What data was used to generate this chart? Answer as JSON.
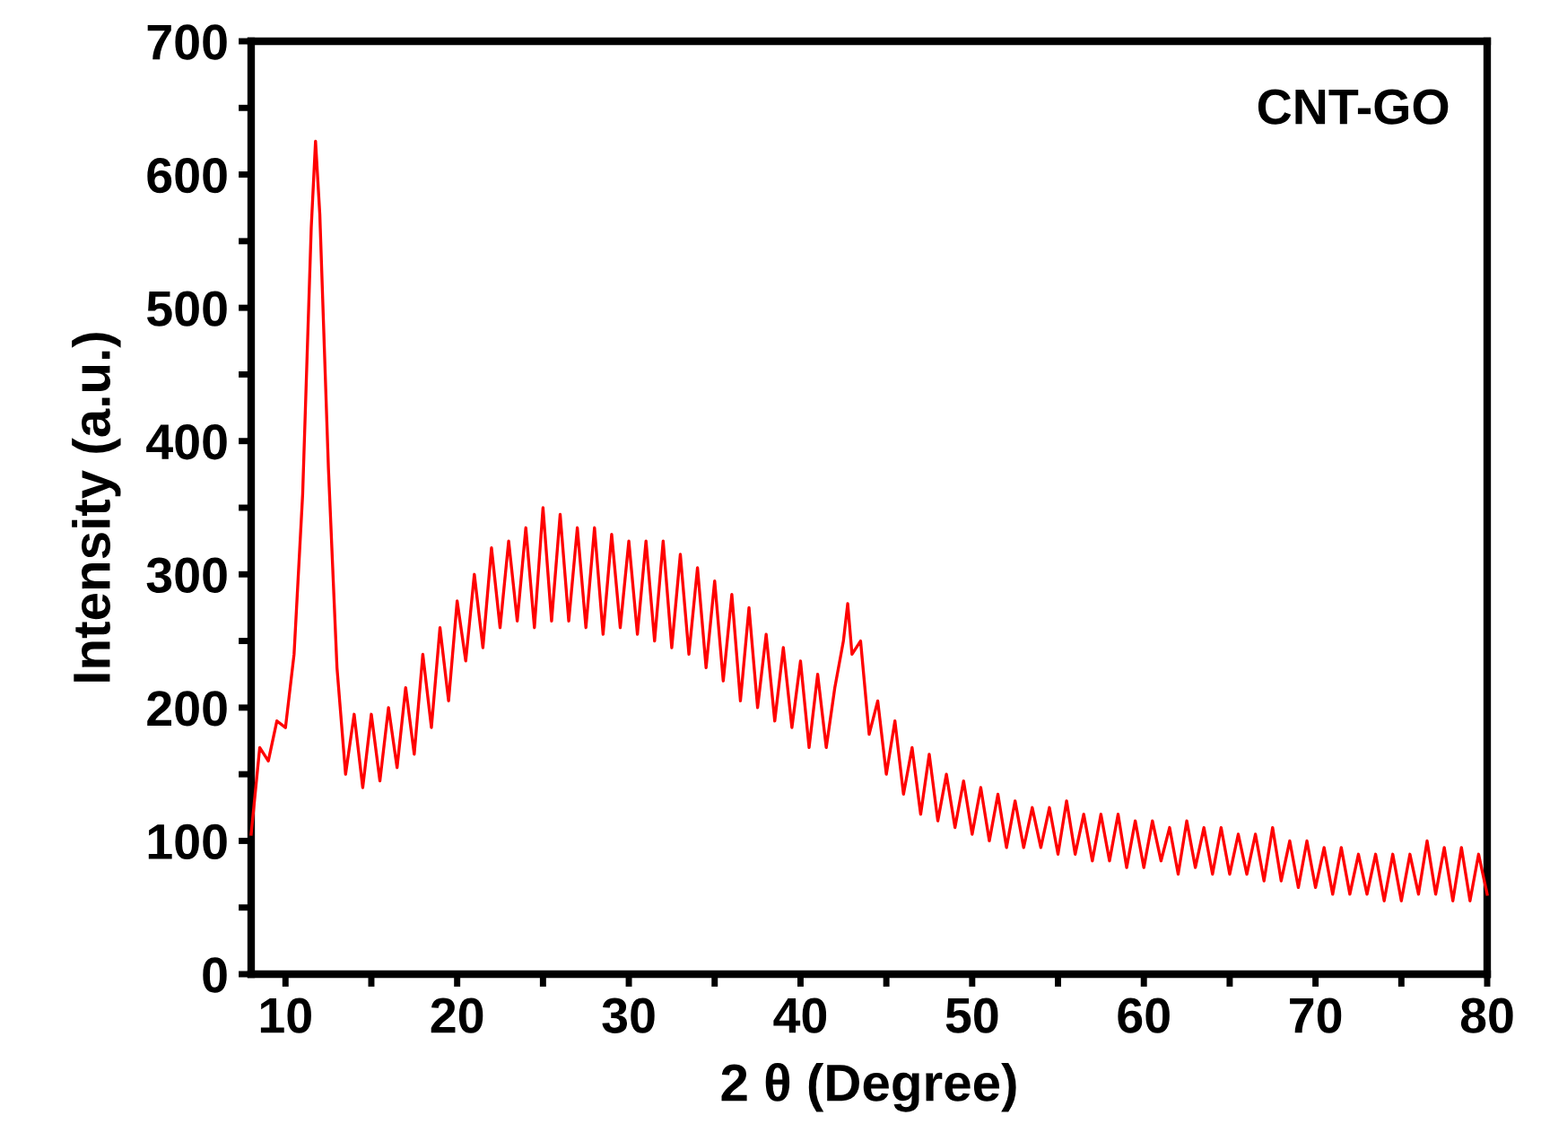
{
  "chart_data": {
    "type": "line",
    "xlabel": "2 θ (Degree)",
    "ylabel": "Intensity (a.u.)",
    "annotations": [
      "CNT-GO"
    ],
    "xlim": [
      8,
      80
    ],
    "ylim": [
      0,
      700
    ],
    "xticks": [
      10,
      {
        "value": 15,
        "label": null
      },
      20,
      {
        "value": 25,
        "label": null
      },
      30,
      {
        "value": 35,
        "label": null
      },
      40,
      {
        "value": 45,
        "label": null
      },
      50,
      {
        "value": 55,
        "label": null
      },
      60,
      {
        "value": 65,
        "label": null
      },
      70,
      {
        "value": 75,
        "label": null
      },
      80
    ],
    "yticks": [
      0,
      {
        "value": 50,
        "label": null
      },
      100,
      {
        "value": 150,
        "label": null
      },
      200,
      {
        "value": 250,
        "label": null
      },
      300,
      {
        "value": 350,
        "label": null
      },
      400,
      {
        "value": 450,
        "label": null
      },
      500,
      {
        "value": 550,
        "label": null
      },
      600,
      {
        "value": 650,
        "label": null
      },
      700
    ],
    "grid": false,
    "legend": false,
    "marker": "none",
    "line_style": "solid",
    "series": [
      {
        "color": "#ff0000",
        "x": [
          8,
          8.5,
          9,
          9.5,
          10,
          10.5,
          11,
          11.5,
          11.75,
          12,
          12.5,
          13,
          13.5,
          14,
          14.5,
          15,
          15.5,
          16,
          16.5,
          17,
          17.5,
          18,
          18.5,
          19,
          19.5,
          20,
          20.5,
          21,
          21.5,
          22,
          22.5,
          23,
          23.5,
          24,
          24.5,
          25,
          25.5,
          26,
          26.5,
          27,
          27.5,
          28,
          28.5,
          29,
          29.5,
          30,
          30.5,
          31,
          31.5,
          32,
          32.5,
          33,
          33.5,
          34,
          34.5,
          35,
          35.5,
          36,
          36.5,
          37,
          37.5,
          38,
          38.5,
          39,
          39.5,
          40,
          40.5,
          41,
          41.5,
          42,
          42.5,
          42.75,
          43,
          43.5,
          44,
          44.5,
          45,
          45.5,
          46,
          46.5,
          47,
          47.5,
          48,
          48.5,
          49,
          49.5,
          50,
          50.5,
          51,
          51.5,
          52,
          52.5,
          53,
          53.5,
          54,
          54.5,
          55,
          55.5,
          56,
          56.5,
          57,
          57.5,
          58,
          58.5,
          59,
          59.5,
          60,
          60.5,
          61,
          61.5,
          62,
          62.5,
          63,
          63.5,
          64,
          64.5,
          65,
          65.5,
          66,
          66.5,
          67,
          67.5,
          68,
          68.5,
          69,
          69.5,
          70,
          70.5,
          71,
          71.5,
          72,
          72.5,
          73,
          73.5,
          74,
          74.5,
          75,
          75.5,
          76,
          76.5,
          77,
          77.5,
          78,
          78.5,
          79,
          79.5,
          80
        ],
        "values": [
          105,
          170,
          160,
          190,
          185,
          240,
          360,
          560,
          625,
          570,
          380,
          230,
          150,
          195,
          140,
          195,
          145,
          200,
          155,
          215,
          165,
          240,
          185,
          260,
          205,
          280,
          235,
          300,
          245,
          320,
          260,
          325,
          265,
          335,
          260,
          350,
          265,
          345,
          265,
          335,
          260,
          335,
          255,
          330,
          260,
          325,
          255,
          325,
          250,
          325,
          245,
          315,
          240,
          305,
          230,
          295,
          220,
          285,
          205,
          275,
          200,
          255,
          190,
          245,
          185,
          235,
          170,
          225,
          170,
          215,
          250,
          278,
          240,
          250,
          180,
          205,
          150,
          190,
          135,
          170,
          120,
          165,
          115,
          150,
          110,
          145,
          105,
          140,
          100,
          135,
          95,
          130,
          95,
          125,
          95,
          125,
          90,
          130,
          90,
          120,
          85,
          120,
          85,
          120,
          80,
          115,
          80,
          115,
          85,
          110,
          75,
          115,
          80,
          110,
          75,
          110,
          75,
          105,
          75,
          105,
          70,
          110,
          70,
          100,
          65,
          100,
          65,
          95,
          60,
          95,
          60,
          90,
          60,
          90,
          55,
          90,
          55,
          90,
          60,
          100,
          60,
          95,
          55,
          95,
          55,
          90,
          60
        ]
      }
    ]
  }
}
